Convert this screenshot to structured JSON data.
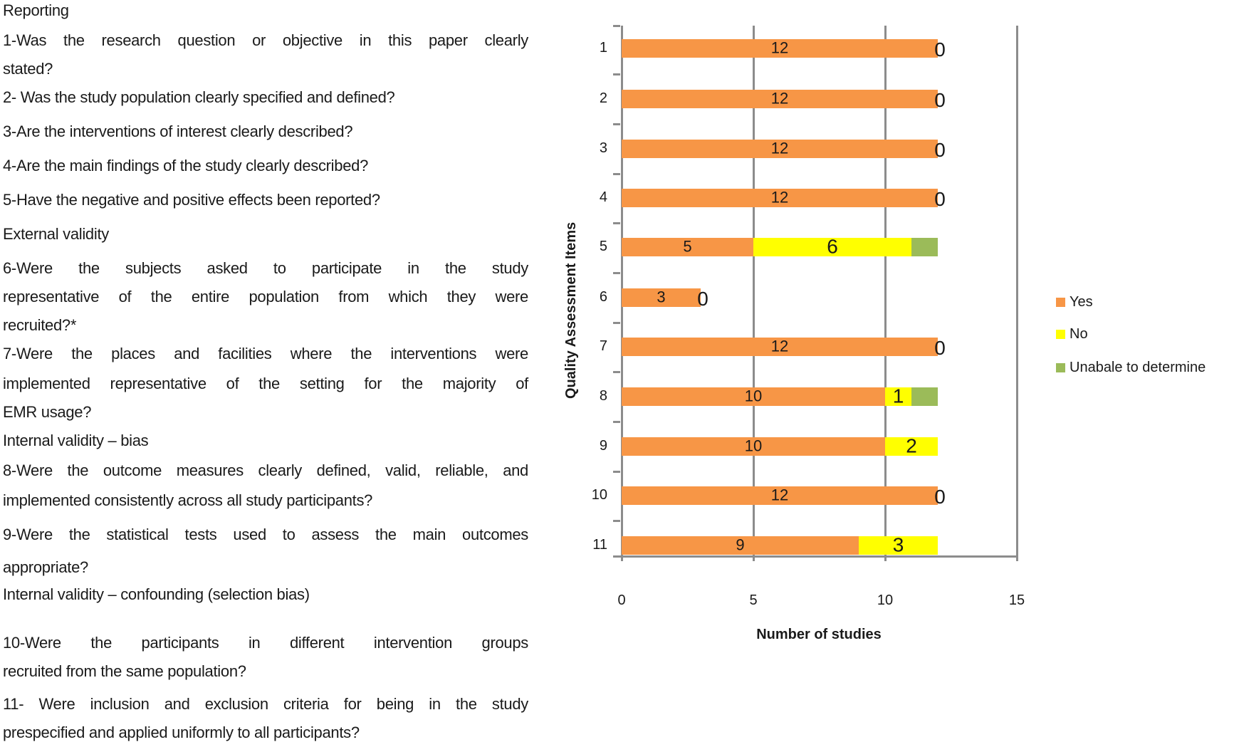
{
  "questions_panel": {
    "sections": [
      {
        "heading": "Reporting",
        "items": [
          {
            "lines": [
              "1-Was the research question or objective in this paper clearly",
              "stated?"
            ]
          },
          {
            "lines": [
              "2- Was the study population  clearly specified and defined?"
            ]
          },
          {
            "lines": [
              "3-Are the interventions of interest clearly described?"
            ]
          },
          {
            "lines": [
              "4-Are the main findings of the study clearly described?"
            ]
          },
          {
            "lines": [
              " 5-Have the negative and positive effects been reported?"
            ]
          }
        ]
      },
      {
        "heading": "External validity",
        "items": [
          {
            "lines": [
              "6-Were the subjects asked to participate in the study",
              "representative of the entire population from which they were",
              "recruited?*"
            ]
          },
          {
            "lines": [
              "7-Were the places and facilities where the interventions were",
              "implemented representative of the setting for the majority of",
              "EMR usage?"
            ]
          }
        ]
      },
      {
        "heading": "Internal validity – bias",
        "items": [
          {
            "lines": [
              "8-Were the outcome measures clearly defined, valid, reliable, and",
              "implemented consistently  across all study participants?"
            ]
          },
          {
            "lines": [
              "9-Were the statistical tests used to assess the main outcomes",
              "appropriate?"
            ]
          }
        ]
      },
      {
        "heading": "Internal validity – confounding (selection bias)",
        "items": [
          {
            "lines": [
              "10-Were the participants in different intervention groups",
              "recruited from the same population?"
            ]
          },
          {
            "lines": [
              "11- Were inclusion and exclusion criteria for being in the study",
              "prespecified and applied uniformly to all participants?"
            ]
          }
        ]
      }
    ]
  },
  "chart_data": {
    "type": "bar",
    "orientation": "horizontal",
    "stacked": true,
    "title": "",
    "xlabel": "Number of studies",
    "ylabel": "Quality Assessment Items",
    "categories": [
      "1",
      "2",
      "3",
      "4",
      "5",
      "6",
      "7",
      "8",
      "9",
      "10",
      "11"
    ],
    "xlim": [
      0,
      15
    ],
    "xticks": [
      0,
      5,
      10,
      15
    ],
    "grid": "vertical major gridlines",
    "legend_position": "right",
    "series": [
      {
        "name": "Yes",
        "color": "#F79646",
        "values": [
          12,
          12,
          12,
          12,
          5,
          3,
          12,
          10,
          10,
          12,
          9
        ]
      },
      {
        "name": "No",
        "color": "#FFFF00",
        "values": [
          0,
          0,
          0,
          0,
          6,
          0,
          0,
          1,
          2,
          0,
          3
        ]
      },
      {
        "name": "Unabale to determine",
        "color": "#9BBB59",
        "values": [
          0,
          0,
          0,
          0,
          1,
          0,
          0,
          1,
          0,
          0,
          0
        ]
      }
    ],
    "data_labels": [
      {
        "item": "1",
        "yes": "12",
        "no": "0"
      },
      {
        "item": "2",
        "yes": "12",
        "no": "0"
      },
      {
        "item": "3",
        "yes": "12",
        "no": "0"
      },
      {
        "item": "4",
        "yes": "12",
        "no": "0"
      },
      {
        "item": "5",
        "yes": "5",
        "no": "6"
      },
      {
        "item": "6",
        "yes": "3",
        "no": "0"
      },
      {
        "item": "7",
        "yes": "12",
        "no": "0"
      },
      {
        "item": "8",
        "yes": "10",
        "no": "1"
      },
      {
        "item": "9",
        "yes": "10",
        "no": "2"
      },
      {
        "item": "10",
        "yes": "12",
        "no": "0"
      },
      {
        "item": "11",
        "yes": "9",
        "no": "3"
      }
    ]
  }
}
